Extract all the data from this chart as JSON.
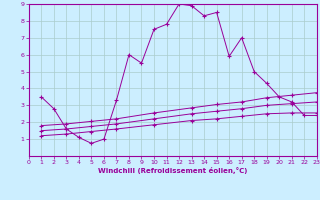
{
  "title": "",
  "xlabel": "Windchill (Refroidissement éolien,°C)",
  "bg_color": "#cceeff",
  "grid_color": "#aacccc",
  "line_color": "#990099",
  "xlim": [
    0,
    23
  ],
  "ylim": [
    0,
    9
  ],
  "xticks": [
    0,
    1,
    2,
    3,
    4,
    5,
    6,
    7,
    8,
    9,
    10,
    11,
    12,
    13,
    14,
    15,
    16,
    17,
    18,
    19,
    20,
    21,
    22,
    23
  ],
  "yticks": [
    1,
    2,
    3,
    4,
    5,
    6,
    7,
    8,
    9
  ],
  "line1_x": [
    1,
    2,
    3,
    4,
    5,
    6,
    7,
    8,
    9,
    10,
    11,
    12,
    13,
    14,
    15,
    16,
    17,
    18,
    19,
    20,
    21,
    22,
    23
  ],
  "line1_y": [
    3.5,
    2.8,
    1.6,
    1.1,
    0.75,
    1.0,
    3.3,
    6.0,
    5.5,
    7.5,
    7.8,
    9.0,
    8.9,
    8.3,
    8.5,
    5.9,
    7.0,
    5.0,
    4.3,
    3.5,
    3.2,
    2.4,
    2.4
  ],
  "line2_x": [
    1,
    3,
    5,
    7,
    10,
    13,
    15,
    17,
    19,
    21,
    23
  ],
  "line2_y": [
    1.8,
    1.9,
    2.05,
    2.2,
    2.55,
    2.85,
    3.05,
    3.2,
    3.45,
    3.6,
    3.75
  ],
  "line3_x": [
    1,
    3,
    5,
    7,
    10,
    13,
    15,
    17,
    19,
    21,
    23
  ],
  "line3_y": [
    1.5,
    1.6,
    1.75,
    1.9,
    2.2,
    2.5,
    2.65,
    2.8,
    3.0,
    3.1,
    3.2
  ],
  "line4_x": [
    1,
    3,
    5,
    7,
    10,
    13,
    15,
    17,
    19,
    21,
    23
  ],
  "line4_y": [
    1.2,
    1.3,
    1.45,
    1.6,
    1.85,
    2.1,
    2.2,
    2.35,
    2.5,
    2.55,
    2.55
  ]
}
